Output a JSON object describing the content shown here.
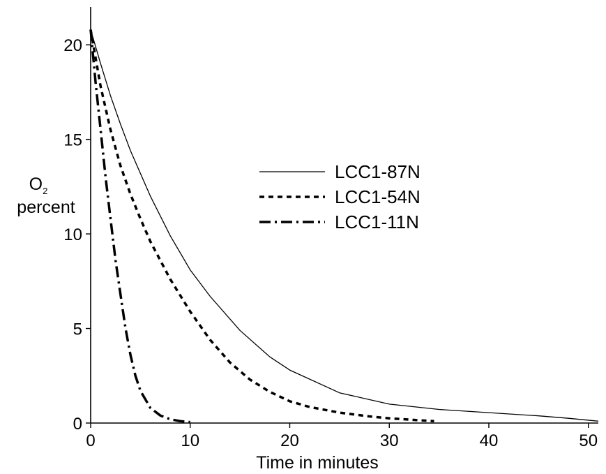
{
  "chart_data": {
    "type": "line",
    "xlabel": "Time in minutes",
    "ylabel_main": "O",
    "ylabel_sub": "2",
    "ylabel_line2": "percent",
    "xlim": [
      0,
      51
    ],
    "ylim": [
      0,
      22
    ],
    "xticks": [
      0,
      10,
      20,
      30,
      40,
      50
    ],
    "yticks": [
      0,
      5,
      10,
      15,
      20
    ],
    "legend_position": "center",
    "series": [
      {
        "name": "LCC1-87N",
        "style": "solid",
        "x": [
          0,
          1,
          2,
          3,
          4,
          6,
          8,
          10,
          12,
          15,
          18,
          20,
          25,
          30,
          35,
          40,
          45,
          48,
          51
        ],
        "y": [
          20.8,
          19.0,
          17.3,
          15.8,
          14.4,
          12.0,
          9.9,
          8.1,
          6.7,
          4.9,
          3.5,
          2.8,
          1.6,
          1.0,
          0.72,
          0.55,
          0.38,
          0.25,
          0.1
        ]
      },
      {
        "name": "LCC1-54N",
        "style": "dashed",
        "x": [
          0,
          1,
          2,
          3,
          4,
          5,
          6,
          8,
          10,
          12,
          14,
          16,
          18,
          20,
          22,
          25,
          28,
          30,
          32,
          34.5
        ],
        "y": [
          20.8,
          17.8,
          15.5,
          13.6,
          12.1,
          10.8,
          9.6,
          7.6,
          5.9,
          4.4,
          3.2,
          2.3,
          1.65,
          1.15,
          0.85,
          0.55,
          0.35,
          0.25,
          0.18,
          0.1
        ]
      },
      {
        "name": "LCC1-11N",
        "style": "dashdot",
        "x": [
          0,
          0.5,
          1,
          1.5,
          2,
          2.5,
          3,
          3.5,
          4,
          4.5,
          5,
          6,
          7,
          8,
          9,
          10
        ],
        "y": [
          20.8,
          18.0,
          15.5,
          13.0,
          10.8,
          8.6,
          6.8,
          5.0,
          3.6,
          2.5,
          1.7,
          0.8,
          0.4,
          0.2,
          0.1,
          0.05
        ]
      }
    ]
  }
}
